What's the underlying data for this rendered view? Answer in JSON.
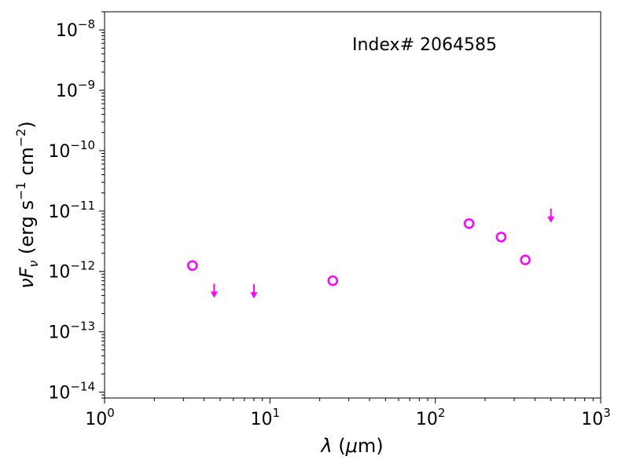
{
  "chart_data": {
    "type": "scatter",
    "title": "",
    "annotation": "Index# 2064585",
    "xscale": "log",
    "yscale": "log",
    "xlim": [
      1,
      1000
    ],
    "ylim": [
      8e-15,
      2e-08
    ],
    "grid": false,
    "xlabel": {
      "main": "λ (μm)"
    },
    "ylabel": {
      "main": "νFν (erg s−1 cm−2)"
    },
    "x_ticks": [
      {
        "base": "10",
        "exp": "0",
        "value": 1
      },
      {
        "base": "10",
        "exp": "1",
        "value": 10
      },
      {
        "base": "10",
        "exp": "2",
        "value": 100
      },
      {
        "base": "10",
        "exp": "3",
        "value": 1000
      }
    ],
    "y_ticks": [
      {
        "base": "10",
        "exp": "−14",
        "value": 1e-14
      },
      {
        "base": "10",
        "exp": "−13",
        "value": 1e-13
      },
      {
        "base": "10",
        "exp": "−12",
        "value": 1e-12
      },
      {
        "base": "10",
        "exp": "−11",
        "value": 1e-11
      },
      {
        "base": "10",
        "exp": "−10",
        "value": 1e-10
      },
      {
        "base": "10",
        "exp": "−9",
        "value": 1e-09
      },
      {
        "base": "10",
        "exp": "−8",
        "value": 1e-08
      }
    ],
    "marker_color": "#ff00ff",
    "series": [
      {
        "kind": "detection",
        "marker": "open-circle",
        "points": [
          {
            "x": 3.4,
            "y": 1.25e-12
          },
          {
            "x": 24,
            "y": 7e-13
          },
          {
            "x": 160,
            "y": 6.2e-12
          },
          {
            "x": 250,
            "y": 3.7e-12
          },
          {
            "x": 350,
            "y": 1.55e-12
          }
        ]
      },
      {
        "kind": "upper-limit",
        "marker": "down-arrow",
        "points": [
          {
            "x": 4.6,
            "y": 4e-13
          },
          {
            "x": 8.0,
            "y": 3.9e-13
          },
          {
            "x": 500,
            "y": 7e-12
          }
        ]
      }
    ]
  }
}
